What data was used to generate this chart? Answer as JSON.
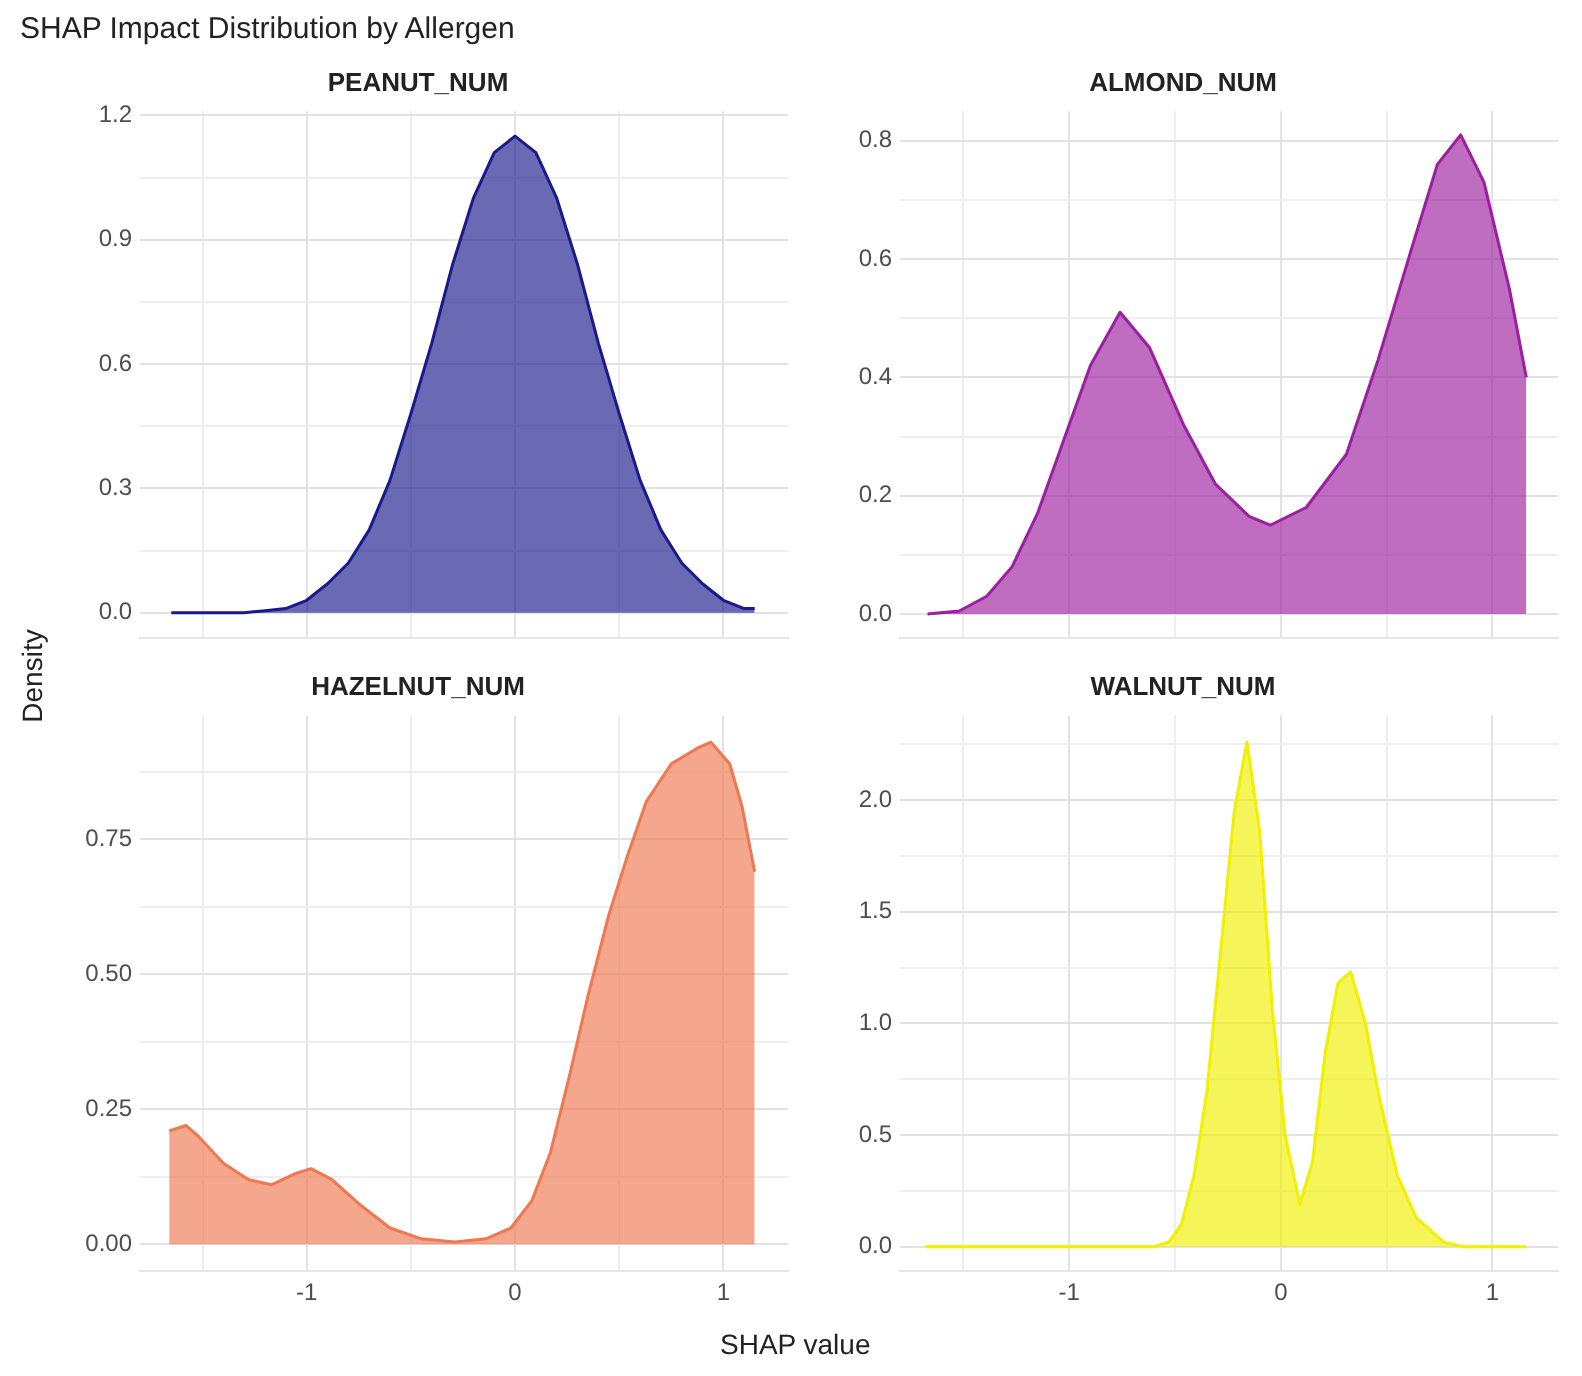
{
  "chart_data": [
    {
      "type": "area",
      "title": "PEANUT_NUM",
      "annotations": [
        "SHAP Impact Distribution by Allergen"
      ],
      "ylabel": "Density",
      "grid": true,
      "tick_labels": "y",
      "xlim": [
        -1.8,
        1.31
      ],
      "xticks": [
        {
          "value": -1.5,
          "label": null
        },
        -1,
        {
          "value": -0.5,
          "label": null
        },
        0,
        {
          "value": 0.5,
          "label": null
        },
        1
      ],
      "ylim": [
        -0.06,
        1.21
      ],
      "yticks": [
        {
          "value": 0,
          "label": "0.0"
        },
        {
          "value": 0.15,
          "label": null
        },
        0.3,
        {
          "value": 0.45,
          "label": null
        },
        0.6,
        {
          "value": 0.75,
          "label": null
        },
        0.9,
        {
          "value": 1.05,
          "label": null
        },
        1.2
      ],
      "x": [
        -1.65,
        -1.3,
        -1.2,
        -1.1,
        -1.0,
        -0.9,
        -0.8,
        -0.7,
        -0.6,
        -0.5,
        -0.4,
        -0.3,
        -0.2,
        -0.1,
        0,
        0.1,
        0.2,
        0.3,
        0.4,
        0.5,
        0.6,
        0.7,
        0.8,
        0.9,
        1.0,
        1.1,
        1.15
      ],
      "series": [
        {
          "color": "#1a1a8c",
          "values": [
            0,
            0,
            0.005,
            0.01,
            0.03,
            0.07,
            0.12,
            0.2,
            0.32,
            0.48,
            0.65,
            0.84,
            1.0,
            1.11,
            1.15,
            1.11,
            1.0,
            0.84,
            0.65,
            0.48,
            0.32,
            0.2,
            0.12,
            0.07,
            0.03,
            0.01,
            0.01
          ]
        }
      ]
    },
    {
      "type": "area",
      "title": "ALMOND_NUM",
      "grid": true,
      "tick_labels": "y",
      "xlim": [
        -1.8,
        1.31
      ],
      "xticks": [
        {
          "value": -1.5,
          "label": null
        },
        -1,
        {
          "value": -0.5,
          "label": null
        },
        0,
        {
          "value": 0.5,
          "label": null
        },
        1
      ],
      "ylim": [
        -0.04,
        0.85
      ],
      "yticks": [
        {
          "value": 0,
          "label": "0.0"
        },
        {
          "value": 0.1,
          "label": null
        },
        0.2,
        {
          "value": 0.3,
          "label": null
        },
        0.4,
        {
          "value": 0.5,
          "label": null
        },
        0.6,
        {
          "value": 0.7,
          "label": null
        },
        0.8
      ],
      "x": [
        -1.67,
        -1.52,
        -1.39,
        -1.27,
        -1.15,
        -1.02,
        -0.9,
        -0.76,
        -0.62,
        -0.46,
        -0.31,
        -0.15,
        -0.05,
        0.12,
        0.31,
        0.46,
        0.62,
        0.74,
        0.85,
        0.96,
        1.08,
        1.16
      ],
      "series": [
        {
          "color": "#9b1fa0",
          "values": [
            0,
            0.005,
            0.03,
            0.08,
            0.17,
            0.3,
            0.42,
            0.51,
            0.45,
            0.32,
            0.22,
            0.165,
            0.15,
            0.18,
            0.27,
            0.43,
            0.62,
            0.76,
            0.81,
            0.73,
            0.55,
            0.4
          ]
        }
      ]
    },
    {
      "type": "area",
      "title": "HAZELNUT_NUM",
      "xlabel": "SHAP value",
      "grid": true,
      "xlim": [
        -1.8,
        1.31
      ],
      "xticks": [
        {
          "value": -1.5,
          "label": null
        },
        -1,
        {
          "value": -0.5,
          "label": null
        },
        0,
        {
          "value": 0.5,
          "label": null
        },
        1
      ],
      "ylim": [
        -0.05,
        0.98
      ],
      "yticks": [
        {
          "value": 0,
          "label": "0.00"
        },
        {
          "value": 0.125,
          "label": null
        },
        {
          "value": 0.25,
          "label": "0.25"
        },
        {
          "value": 0.375,
          "label": null
        },
        {
          "value": 0.5,
          "label": "0.50"
        },
        {
          "value": 0.625,
          "label": null
        },
        {
          "value": 0.75,
          "label": "0.75"
        },
        {
          "value": 0.875,
          "label": null
        }
      ],
      "x": [
        -1.66,
        -1.58,
        -1.52,
        -1.4,
        -1.28,
        -1.17,
        -1.06,
        -0.98,
        -0.88,
        -0.75,
        -0.6,
        -0.45,
        -0.29,
        -0.14,
        -0.02,
        0.08,
        0.17,
        0.26,
        0.35,
        0.45,
        0.54,
        0.63,
        0.75,
        0.88,
        0.94,
        1.03,
        1.09,
        1.15
      ],
      "series": [
        {
          "color": "#f07850",
          "values": [
            0.21,
            0.22,
            0.2,
            0.15,
            0.12,
            0.11,
            0.13,
            0.14,
            0.12,
            0.075,
            0.03,
            0.01,
            0.004,
            0.01,
            0.03,
            0.08,
            0.17,
            0.31,
            0.46,
            0.61,
            0.72,
            0.82,
            0.89,
            0.92,
            0.93,
            0.89,
            0.81,
            0.69
          ]
        }
      ]
    },
    {
      "type": "area",
      "title": "WALNUT_NUM",
      "grid": true,
      "xlim": [
        -1.8,
        1.31
      ],
      "xticks": [
        {
          "value": -1.5,
          "label": null
        },
        -1,
        {
          "value": -0.5,
          "label": null
        },
        0,
        {
          "value": 0.5,
          "label": null
        },
        1
      ],
      "ylim": [
        -0.11,
        2.38
      ],
      "yticks": [
        {
          "value": 0,
          "label": "0.0"
        },
        {
          "value": 0.25,
          "label": null
        },
        0.5,
        {
          "value": 0.75,
          "label": null
        },
        {
          "value": 1,
          "label": "1.0"
        },
        {
          "value": 1.25,
          "label": null
        },
        1.5,
        {
          "value": 1.75,
          "label": null
        },
        {
          "value": 2,
          "label": "2.0"
        },
        {
          "value": 2.25,
          "label": null
        }
      ],
      "x": [
        -1.68,
        -0.6,
        -0.53,
        -0.47,
        -0.41,
        -0.35,
        -0.29,
        -0.22,
        -0.16,
        -0.1,
        -0.04,
        0.02,
        0.09,
        0.15,
        0.21,
        0.27,
        0.33,
        0.4,
        0.46,
        0.55,
        0.64,
        0.77,
        0.86,
        1.16
      ],
      "series": [
        {
          "color": "#f0f000",
          "values": [
            0,
            0,
            0.02,
            0.1,
            0.32,
            0.69,
            1.27,
            1.95,
            2.26,
            1.86,
            1.06,
            0.5,
            0.19,
            0.38,
            0.87,
            1.18,
            1.23,
            1.0,
            0.69,
            0.32,
            0.13,
            0.02,
            0,
            0
          ]
        }
      ]
    }
  ]
}
